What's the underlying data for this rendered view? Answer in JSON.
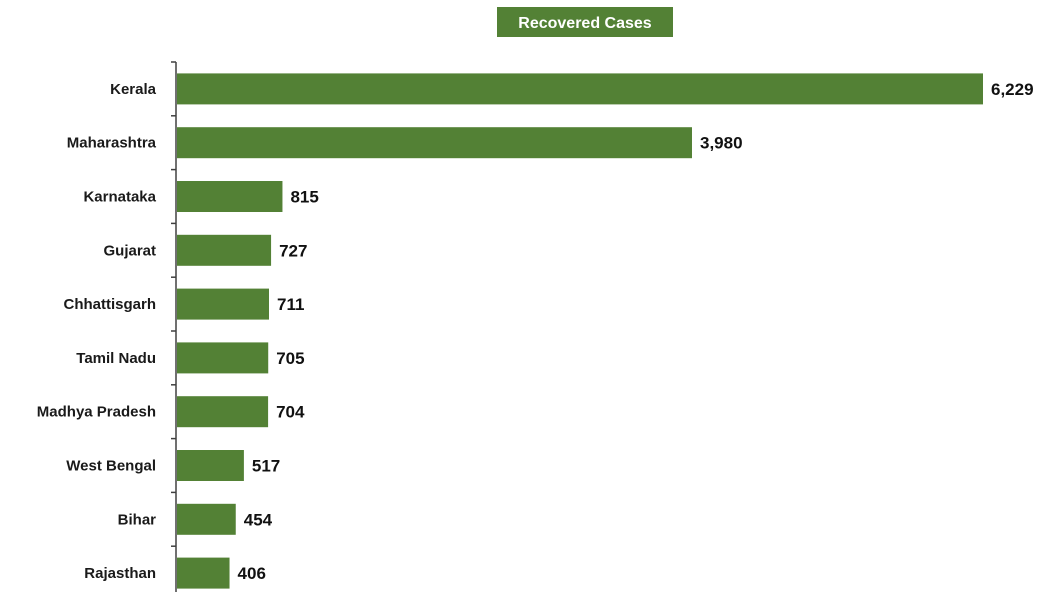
{
  "colors": {
    "bar": "#538135",
    "title_background": "#538135",
    "title_text": "#ffffff",
    "axis": "#404040",
    "label_text": "#1a1a1a"
  },
  "chart_data": {
    "type": "bar",
    "orientation": "horizontal",
    "title": "Recovered Cases",
    "xlabel": "",
    "ylabel": "",
    "categories": [
      "Kerala",
      "Maharashtra",
      "Karnataka",
      "Gujarat",
      "Chhattisgarh",
      "Tamil Nadu",
      "Madhya Pradesh",
      "West Bengal",
      "Bihar",
      "Rajasthan"
    ],
    "values": [
      6229,
      3980,
      815,
      727,
      711,
      705,
      704,
      517,
      454,
      406
    ],
    "value_labels": [
      "6,229",
      "3,980",
      "815",
      "727",
      "711",
      "705",
      "704",
      "517",
      "454",
      "406"
    ],
    "xlim": [
      0,
      6229
    ],
    "grid": false,
    "legend": "none"
  }
}
